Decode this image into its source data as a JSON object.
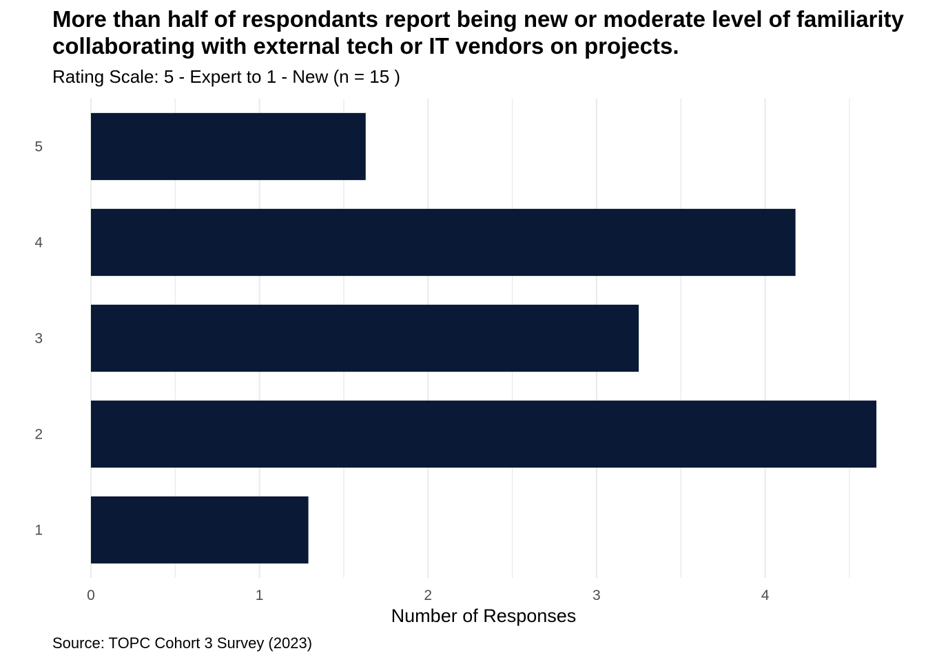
{
  "chart_data": {
    "type": "bar",
    "orientation": "horizontal",
    "title": "More than half of respondants report being new or moderate level of familiarity collaborating with external tech or IT vendors on projects.",
    "subtitle": "Rating Scale: 5 - Expert to 1 - New (n = 15 )",
    "caption": "Source: TOPC Cohort 3 Survey (2023)",
    "xlabel": "Number of Responses",
    "ylabel": "",
    "categories": [
      "5",
      "4",
      "3",
      "2",
      "1"
    ],
    "values": [
      1.63,
      4.18,
      3.25,
      4.66,
      1.29
    ],
    "xlim": [
      0,
      4.66
    ],
    "xticks": [
      "0",
      "1",
      "2",
      "3",
      "4"
    ],
    "bar_color": "#0a1936",
    "grid": true,
    "gridline_color": "#ebebeb",
    "legend": "none"
  }
}
